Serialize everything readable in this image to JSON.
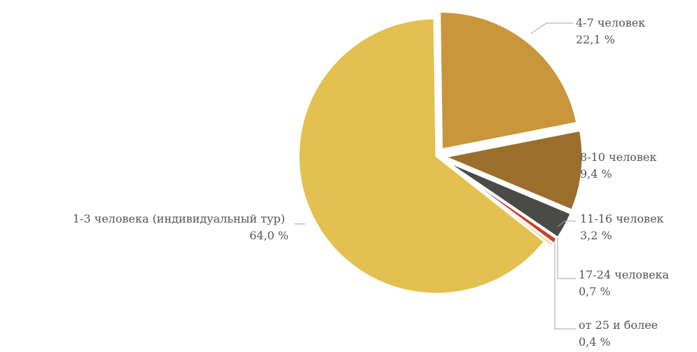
{
  "chart_data": {
    "type": "pie",
    "title": "",
    "legend": "none",
    "slices": [
      {
        "label": "1-3 человека (индивидуальный тур)",
        "value": 64.0,
        "value_label": "64,0 %",
        "color": "#e3c04f",
        "exploded": false
      },
      {
        "label": "4-7 человек",
        "value": 22.1,
        "value_label": "22,1 %",
        "color": "#c9963b",
        "exploded": true
      },
      {
        "label": "8-10 человек",
        "value": 9.4,
        "value_label": "9,4 %",
        "color": "#9b6e2b",
        "exploded": true
      },
      {
        "label": "11-16 человек",
        "value": 3.2,
        "value_label": "3,2 %",
        "color": "#4a4a46",
        "exploded": true
      },
      {
        "label": "17-24 человека",
        "value": 0.7,
        "value_label": "0,7 %",
        "color": "#c8402a",
        "exploded": true
      },
      {
        "label": "от 25 и более",
        "value": 0.4,
        "value_label": "0,4 %",
        "color": "#e8d27a",
        "exploded": true
      }
    ]
  }
}
